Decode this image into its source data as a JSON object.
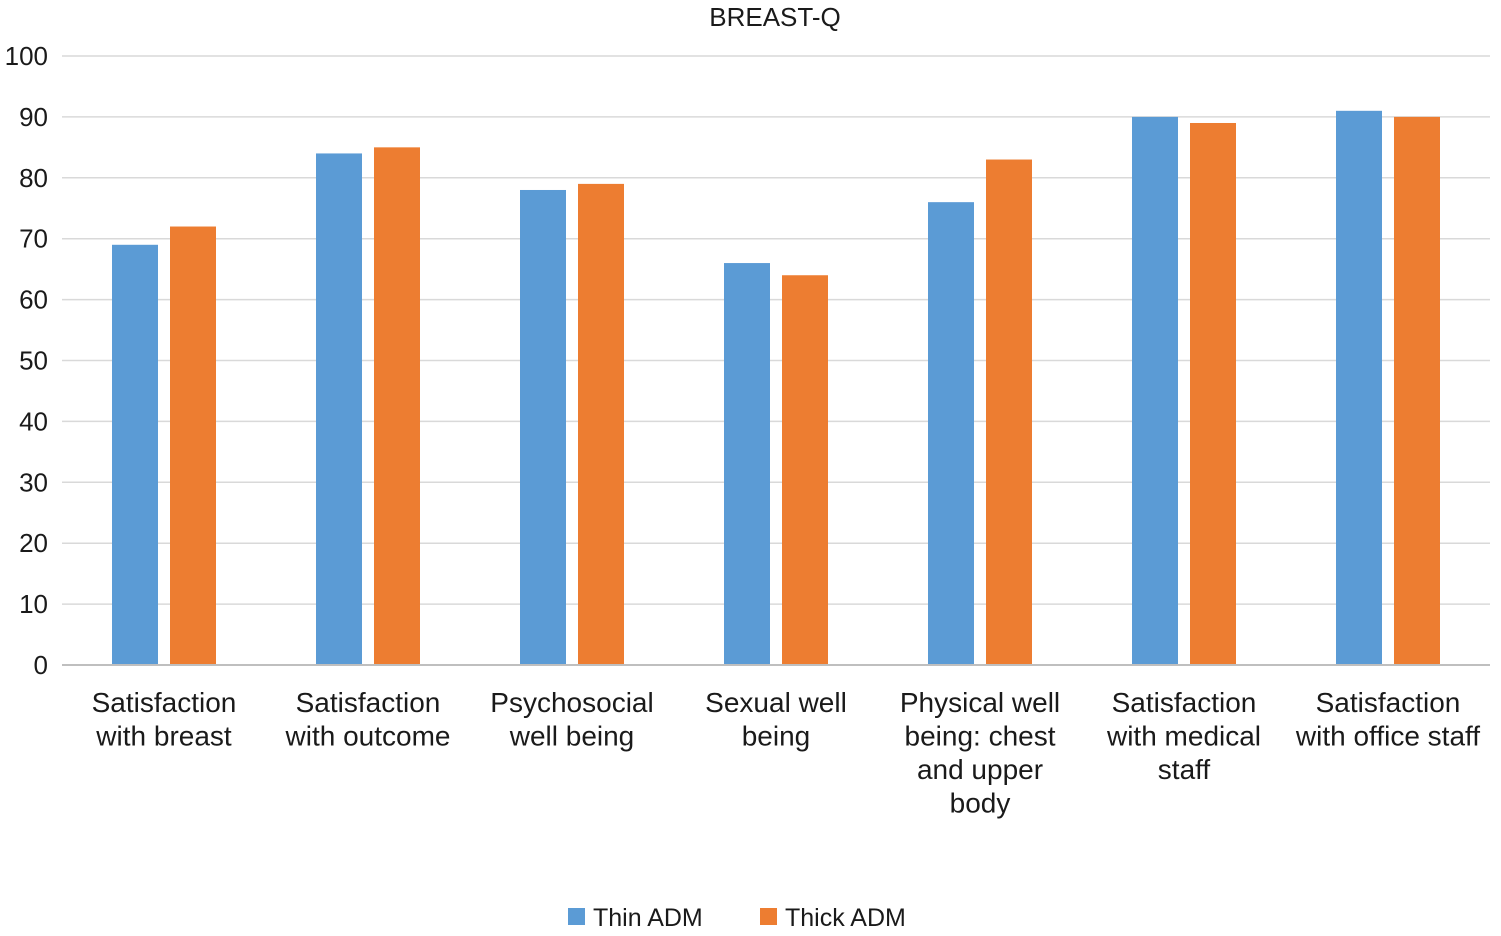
{
  "chart_data": {
    "type": "bar",
    "title": "BREAST-Q",
    "xlabel": "",
    "ylabel": "",
    "ylim": [
      0,
      100
    ],
    "yticks": [
      0,
      10,
      20,
      30,
      40,
      50,
      60,
      70,
      80,
      90,
      100
    ],
    "grid": true,
    "legend_position": "bottom",
    "categories": [
      [
        "Satisfaction",
        "with breast"
      ],
      [
        "Satisfaction",
        "with outcome"
      ],
      [
        "Psychosocial",
        "well being"
      ],
      [
        "Sexual well",
        "being"
      ],
      [
        "Physical well",
        "being: chest",
        "and upper",
        "body"
      ],
      [
        "Satisfaction",
        "with medical",
        "staff"
      ],
      [
        "Satisfaction",
        "with office staff"
      ]
    ],
    "series": [
      {
        "name": "Thin ADM",
        "color": "#5b9bd5",
        "values": [
          69,
          84,
          78,
          66,
          76,
          90,
          91
        ]
      },
      {
        "name": "Thick ADM",
        "color": "#ed7d31",
        "values": [
          72,
          85,
          79,
          64,
          83,
          89,
          90
        ]
      }
    ]
  }
}
